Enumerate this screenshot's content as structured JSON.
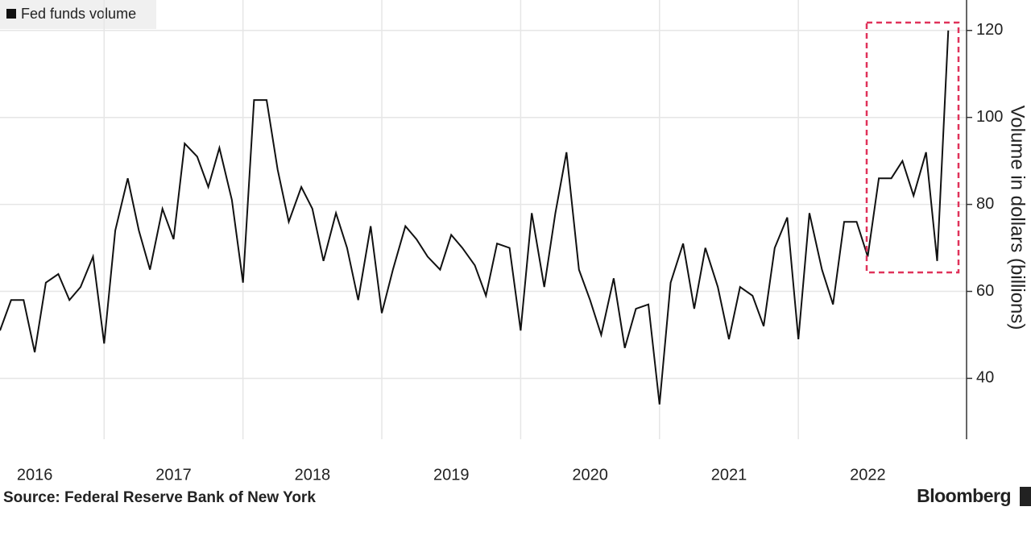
{
  "chart_data": {
    "type": "line",
    "y_label": "Volume in dollars (billions)",
    "source": "Source: Federal Reserve Bank of New York",
    "brand": "Bloomberg",
    "x": [
      2016.25,
      2016.33,
      2016.42,
      2016.5,
      2016.58,
      2016.67,
      2016.75,
      2016.83,
      2016.92,
      2017,
      2017.08,
      2017.17,
      2017.25,
      2017.33,
      2017.42,
      2017.5,
      2017.58,
      2017.67,
      2017.75,
      2017.83,
      2017.92,
      2018,
      2018.08,
      2018.17,
      2018.25,
      2018.33,
      2018.42,
      2018.5,
      2018.58,
      2018.67,
      2018.75,
      2018.83,
      2018.92,
      2019,
      2019.08,
      2019.17,
      2019.25,
      2019.33,
      2019.42,
      2019.5,
      2019.58,
      2019.67,
      2019.75,
      2019.83,
      2019.92,
      2020,
      2020.08,
      2020.17,
      2020.25,
      2020.33,
      2020.42,
      2020.5,
      2020.58,
      2020.67,
      2020.75,
      2020.83,
      2020.92,
      2021,
      2021.08,
      2021.17,
      2021.25,
      2021.33,
      2021.42,
      2021.5,
      2021.58,
      2021.67,
      2021.75,
      2021.83,
      2021.92,
      2022,
      2022.08,
      2022.17,
      2022.25,
      2022.33,
      2022.42,
      2022.5,
      2022.58,
      2022.67,
      2022.75,
      2022.83,
      2022.92,
      2023,
      2023.08
    ],
    "series": [
      {
        "name": "Fed funds volume",
        "color": "#111111",
        "values": [
          51,
          58,
          58,
          46,
          62,
          64,
          58,
          61,
          68,
          48,
          74,
          86,
          74,
          65,
          79,
          72,
          94,
          91,
          84,
          93,
          81,
          62,
          104,
          104,
          88,
          76,
          84,
          79,
          67,
          78,
          70,
          58,
          75,
          55,
          65,
          75,
          72,
          68,
          65,
          73,
          70,
          66,
          59,
          71,
          70,
          51,
          78,
          61,
          78,
          92,
          65,
          58,
          50,
          63,
          47,
          56,
          57,
          34,
          62,
          71,
          56,
          70,
          61,
          49,
          61,
          59,
          52,
          70,
          77,
          49,
          78,
          65,
          57,
          76,
          76,
          68,
          86,
          86,
          90,
          82,
          92,
          67,
          120
        ]
      }
    ],
    "xlim": [
      2016.25,
      2023.2
    ],
    "ylim": [
      26,
      127
    ],
    "yticks": [
      40,
      60,
      80,
      100,
      120
    ],
    "xticks": [
      {
        "value": 2016.5,
        "label": "2016"
      },
      {
        "value": 2017.5,
        "label": "2017"
      },
      {
        "value": 2018.5,
        "label": "2018"
      },
      {
        "value": 2019.5,
        "label": "2019"
      },
      {
        "value": 2020.5,
        "label": "2020"
      },
      {
        "value": 2021.5,
        "label": "2021"
      },
      {
        "value": 2022.5,
        "label": "2022"
      }
    ],
    "xgrid": [
      2017,
      2018,
      2019,
      2020,
      2021,
      2022
    ],
    "grid": true
  }
}
